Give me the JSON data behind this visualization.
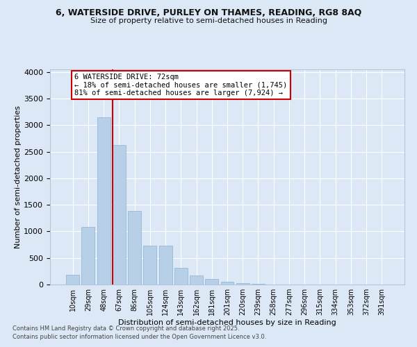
{
  "title_line1": "6, WATERSIDE DRIVE, PURLEY ON THAMES, READING, RG8 8AQ",
  "title_line2": "Size of property relative to semi-detached houses in Reading",
  "xlabel": "Distribution of semi-detached houses by size in Reading",
  "ylabel": "Number of semi-detached properties",
  "bar_color": "#b8cfe8",
  "bar_edge_color": "#8ab0d4",
  "bg_color": "#dce8f5",
  "grid_color": "#ffffff",
  "annotation_box_color": "#cc0000",
  "property_line_color": "#cc0000",
  "categories": [
    "10sqm",
    "29sqm",
    "48sqm",
    "67sqm",
    "86sqm",
    "105sqm",
    "124sqm",
    "143sqm",
    "162sqm",
    "181sqm",
    "201sqm",
    "220sqm",
    "239sqm",
    "258sqm",
    "277sqm",
    "296sqm",
    "315sqm",
    "334sqm",
    "353sqm",
    "372sqm",
    "391sqm"
  ],
  "values": [
    185,
    1090,
    3150,
    2630,
    1390,
    730,
    730,
    310,
    175,
    105,
    55,
    30,
    10,
    5,
    3,
    2,
    1,
    0,
    0,
    0,
    0
  ],
  "property_label": "6 WATERSIDE DRIVE: 72sqm",
  "pct_smaller": "18%",
  "pct_larger": "81%",
  "count_smaller": "1,745",
  "count_larger": "7,924",
  "red_line_index": 3,
  "ylim": [
    0,
    4050
  ],
  "yticks": [
    0,
    500,
    1000,
    1500,
    2000,
    2500,
    3000,
    3500,
    4000
  ],
  "footnote1": "Contains HM Land Registry data © Crown copyright and database right 2025.",
  "footnote2": "Contains public sector information licensed under the Open Government Licence v3.0."
}
